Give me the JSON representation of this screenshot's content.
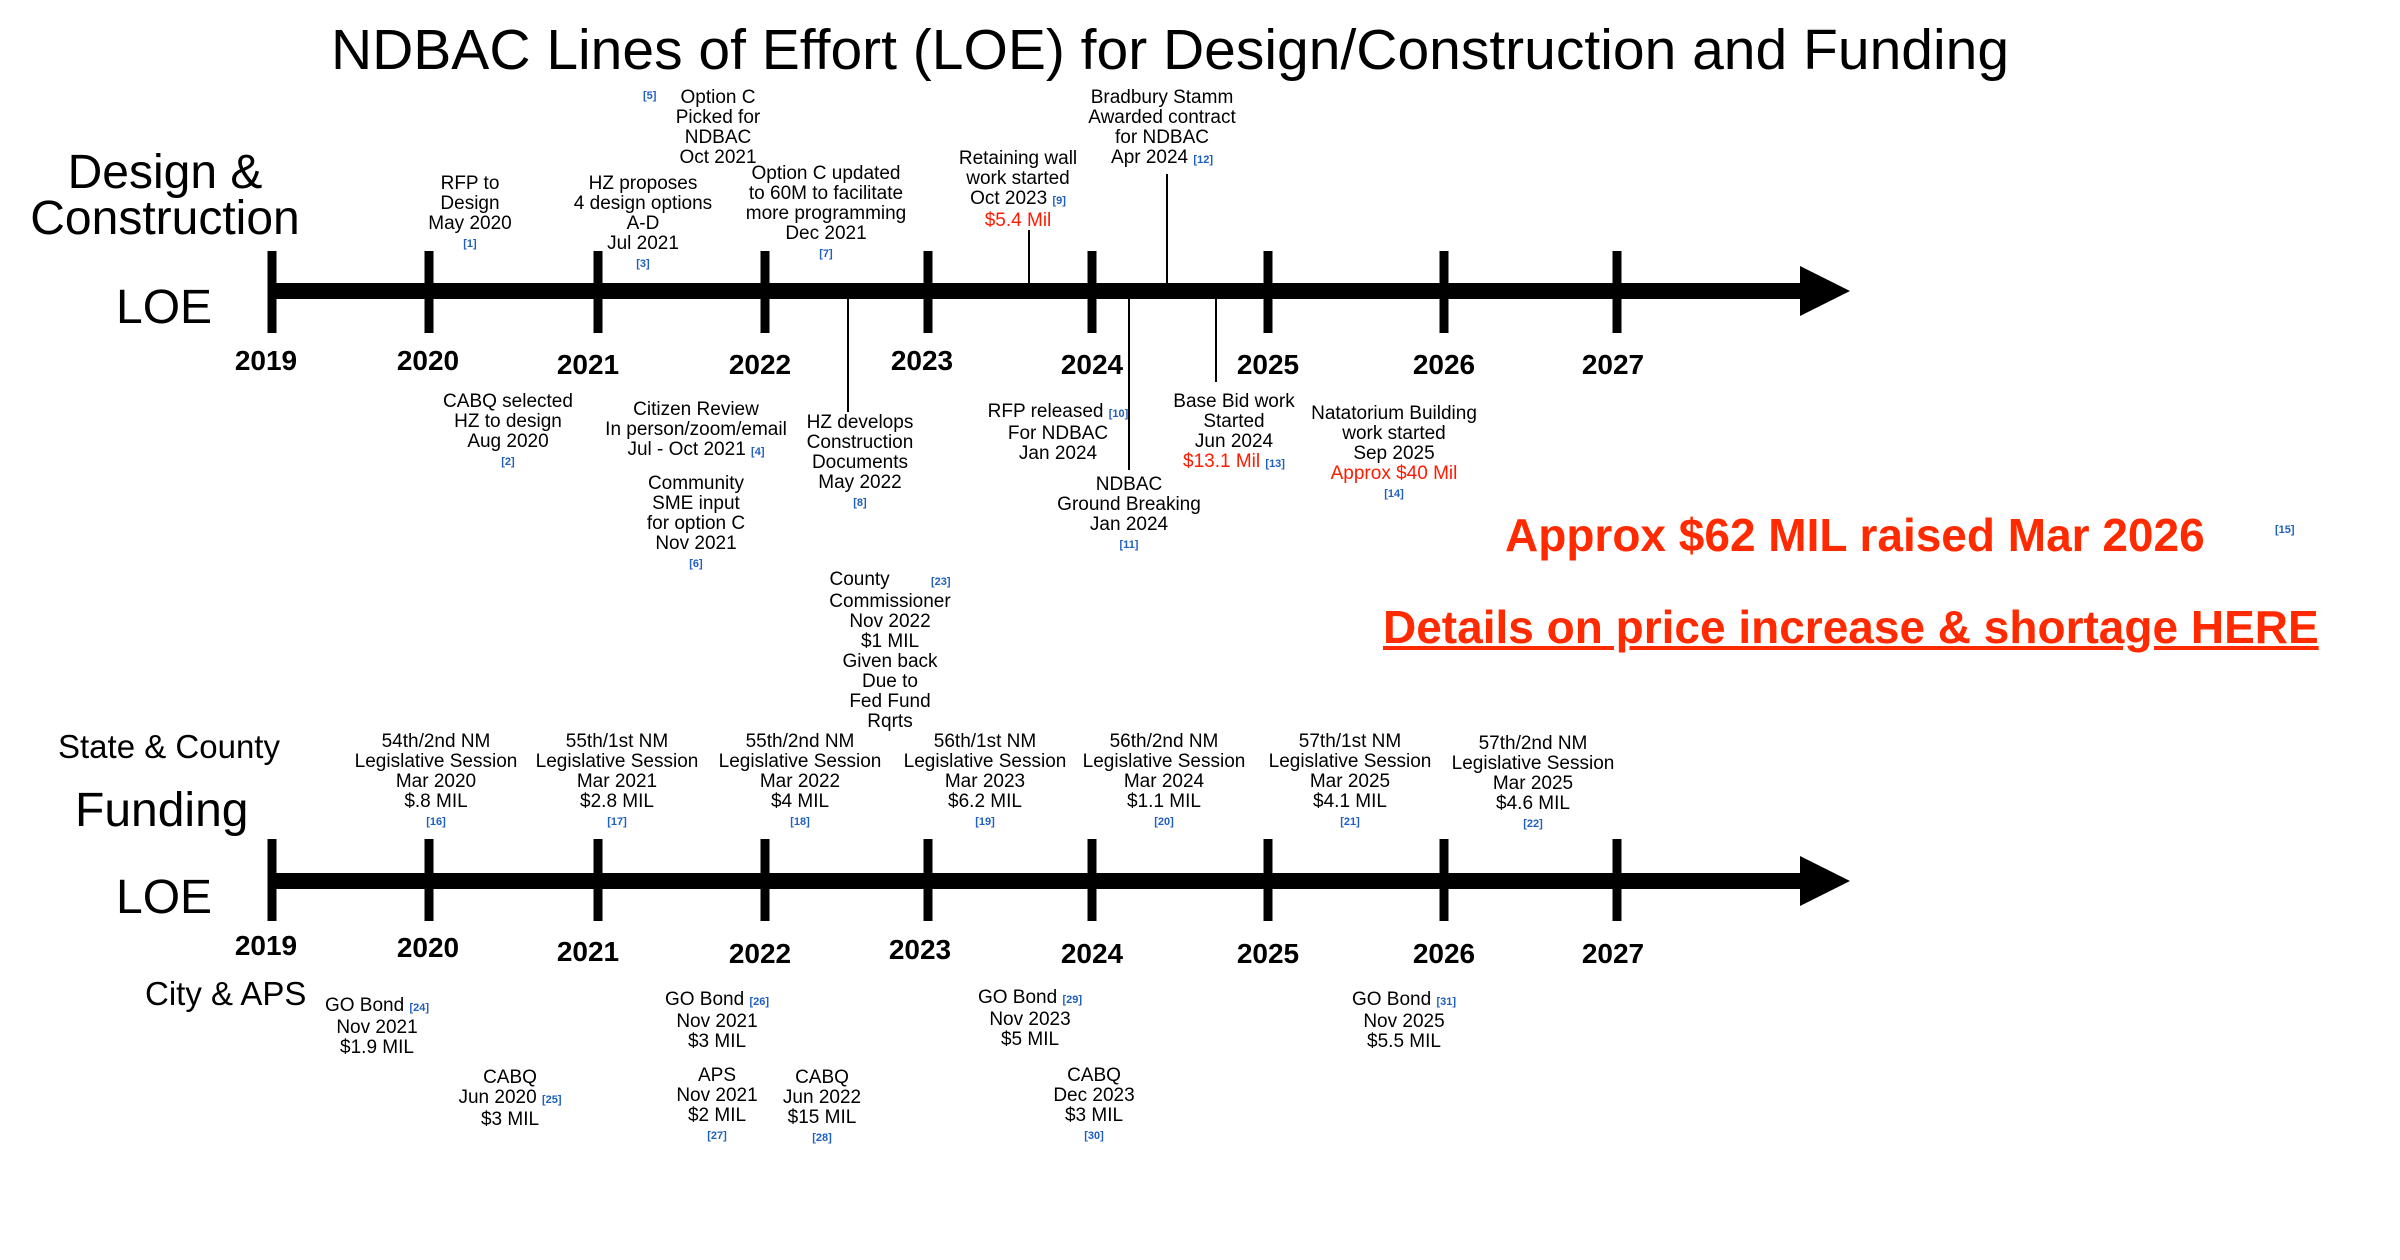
{
  "title": "NDBAC Lines of Effort (LOE) for Design/Construction and Funding",
  "design": {
    "heading": "Design &\nConstruction",
    "loe": "LOE",
    "years": [
      "2019",
      "2020",
      "2021",
      "2022",
      "2023",
      "2024",
      "2025",
      "2026",
      "2027"
    ]
  },
  "funding": {
    "state_label": "State & County",
    "heading": "Funding",
    "loe": "LOE",
    "city_label": "City & APS",
    "years": [
      "2019",
      "2020",
      "2021",
      "2022",
      "2023",
      "2024",
      "2025",
      "2026",
      "2027"
    ]
  },
  "design_events": {
    "rfp_design": {
      "lines": [
        "RFP to",
        "Design",
        "May 2020"
      ],
      "ref": "[1]"
    },
    "option_c": {
      "lines": [
        "Option C",
        "Picked for",
        "NDBAC",
        "Oct 2021"
      ],
      "ref": "[5]"
    },
    "hz_proposes": {
      "lines": [
        "HZ  proposes",
        "4 design options",
        "A-D",
        "Jul 2021"
      ],
      "ref": "[3]"
    },
    "option_c_updated": {
      "lines": [
        "Option C updated",
        "to 60M to facilitate",
        "more programming",
        "Dec 2021"
      ],
      "ref": "[7]"
    },
    "retaining_wall": {
      "lines": [
        "Retaining wall",
        "work started",
        "Oct 2023"
      ],
      "red": "$5.4 Mil",
      "ref": "[9]"
    },
    "bradbury": {
      "lines": [
        "Bradbury Stamm",
        "Awarded contract",
        "for NDBAC",
        "Apr 2024"
      ],
      "ref": "[12]"
    },
    "cabq_selected": {
      "lines": [
        "CABQ selected",
        "HZ to design",
        "Aug 2020"
      ],
      "ref": "[2]"
    },
    "citizen_review": {
      "lines": [
        "Citizen Review",
        "In person/zoom/email",
        "Jul - Oct 2021"
      ],
      "ref": "[4]"
    },
    "community_sme": {
      "lines": [
        "Community",
        "SME input",
        "for option C",
        "Nov 2021"
      ],
      "ref": "[6]"
    },
    "hz_develops": {
      "lines": [
        "HZ develops",
        "Construction",
        "Documents",
        "May 2022"
      ],
      "ref": "[8]"
    },
    "rfp_released": {
      "lines": [
        "RFP released",
        "For NDBAC",
        "Jan 2024"
      ],
      "ref": "[10]"
    },
    "ground_breaking": {
      "lines": [
        "NDBAC",
        "Ground Breaking",
        "Jan 2024"
      ],
      "ref": "[11]"
    },
    "base_bid": {
      "lines": [
        "Base Bid work",
        "Started",
        "Jun 2024"
      ],
      "red": "$13.1 Mil",
      "ref": "[13]"
    },
    "natatorium": {
      "lines": [
        "Natatorium Building",
        "work started",
        "Sep 2025"
      ],
      "red": "Approx $40 Mil",
      "ref": "[14]"
    }
  },
  "highlights": {
    "raised": "Approx $62 MIL raised Mar 2026",
    "raised_ref": "[15]",
    "details_link": "Details on price increase & shortage HERE"
  },
  "state_events": {
    "county": {
      "lines": [
        "County",
        "Commissioner",
        "Nov 2022",
        "$1 MIL",
        "Given back",
        "Due to",
        "Fed Fund",
        "Rqrts"
      ],
      "ref": "[23]"
    },
    "s1": {
      "lines": [
        "54th/2nd  NM",
        "Legislative Session",
        "Mar 2020",
        "$.8 MIL"
      ],
      "ref": "[16]"
    },
    "s2": {
      "lines": [
        "55th/1st NM",
        "Legislative Session",
        "Mar 2021",
        "$2.8 MIL"
      ],
      "ref": "[17]"
    },
    "s3": {
      "lines": [
        "55th/2nd NM",
        "Legislative Session",
        "Mar 2022",
        "$4 MIL"
      ],
      "ref": "[18]"
    },
    "s4": {
      "lines": [
        "56th/1st  NM",
        "Legislative Session",
        "Mar 2023",
        "$6.2 MIL"
      ],
      "ref": "[19]"
    },
    "s5": {
      "lines": [
        "56th/2nd NM",
        "Legislative Session",
        "Mar 2024",
        "$1.1 MIL"
      ],
      "ref": "[20]"
    },
    "s6": {
      "lines": [
        "57th/1st NM",
        "Legislative Session",
        "Mar 2025",
        "$4.1 MIL"
      ],
      "ref": "[21]"
    },
    "s7": {
      "lines": [
        "57th/2nd NM",
        "Legislative Session",
        "Mar 2025",
        "$4.6 MIL"
      ],
      "ref": "[22]"
    }
  },
  "city_events": {
    "go1": {
      "lines": [
        "GO Bond",
        "Nov 2021",
        "$1.9 MIL"
      ],
      "ref": "[24]"
    },
    "cabq1": {
      "lines": [
        "CABQ",
        "Jun 2020",
        "$3 MIL"
      ],
      "ref": "[25]"
    },
    "go2": {
      "lines": [
        "GO Bond",
        "Nov 2021",
        "$3 MIL"
      ],
      "ref": "[26]"
    },
    "aps": {
      "lines": [
        "APS",
        "Nov 2021",
        "$2 MIL"
      ],
      "ref": "[27]"
    },
    "cabq2": {
      "lines": [
        "CABQ",
        "Jun 2022",
        "$15 MIL"
      ],
      "ref": "[28]"
    },
    "go3": {
      "lines": [
        "GO Bond",
        "Nov 2023",
        "$5 MIL"
      ],
      "ref": "[29]"
    },
    "cabq3": {
      "lines": [
        "CABQ",
        "Dec 2023",
        "$3 MIL"
      ],
      "ref": "[30]"
    },
    "go4": {
      "lines": [
        "GO Bond",
        "Nov 2025",
        "$5.5 MIL"
      ],
      "ref": "[31]"
    }
  },
  "colors": {
    "accent_red": "#ff2a00",
    "ref_blue": "#1f5fbf",
    "axis": "#000000"
  }
}
